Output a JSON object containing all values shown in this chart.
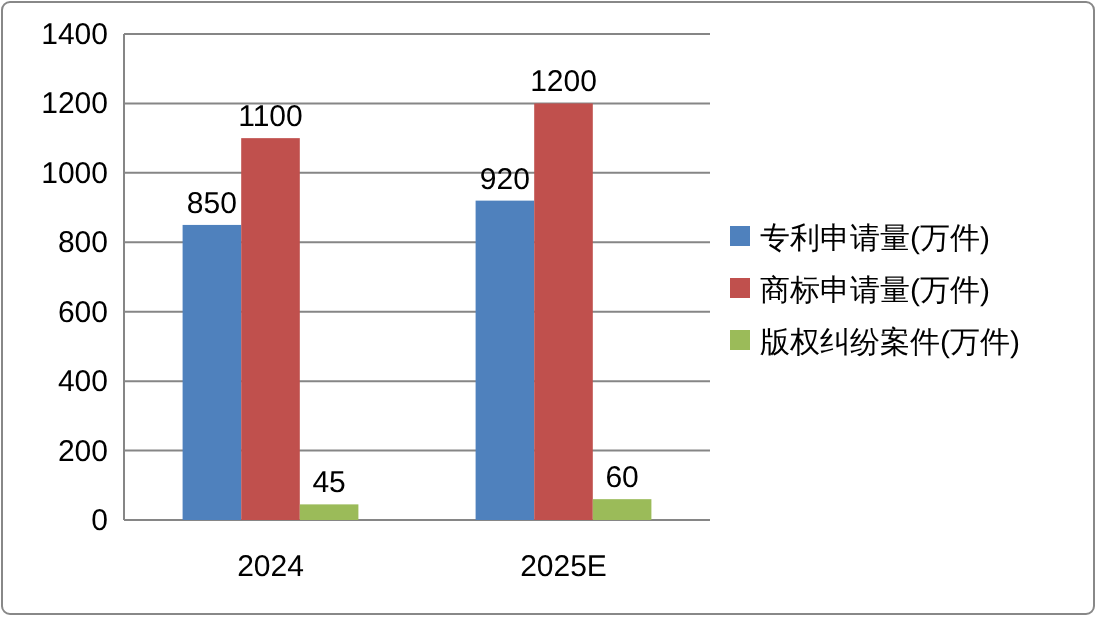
{
  "chart_data": {
    "type": "bar",
    "categories": [
      "2024",
      "2025E"
    ],
    "series": [
      {
        "name": "专利申请量(万件)",
        "color": "#4f81bd",
        "values": [
          850,
          920
        ]
      },
      {
        "name": "商标申请量(万件)",
        "color": "#c0504d",
        "values": [
          1100,
          1200
        ]
      },
      {
        "name": "版权纠纷案件(万件)",
        "color": "#9bbb59",
        "values": [
          45,
          60
        ]
      }
    ],
    "ylim": [
      0,
      1400
    ],
    "yticks": [
      0,
      200,
      400,
      600,
      800,
      1000,
      1200,
      1400
    ],
    "grid": "y",
    "legend": "right",
    "data_labels": true
  }
}
